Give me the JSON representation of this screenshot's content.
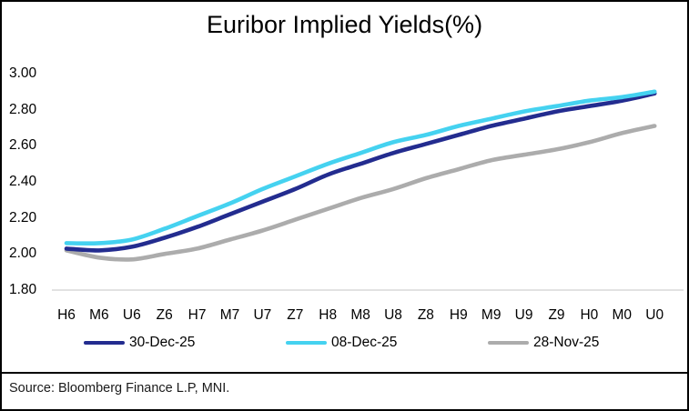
{
  "chart_data": {
    "type": "line",
    "title": "Euribor Implied Yields(%)",
    "categories": [
      "H6",
      "M6",
      "U6",
      "Z6",
      "H7",
      "M7",
      "U7",
      "Z7",
      "H8",
      "M8",
      "U8",
      "Z8",
      "H9",
      "M9",
      "U9",
      "Z9",
      "H0",
      "M0",
      "U0"
    ],
    "series": [
      {
        "name": "30-Dec-25",
        "color": "#232C8F",
        "values": [
          2.03,
          2.02,
          2.04,
          2.09,
          2.15,
          2.22,
          2.29,
          2.36,
          2.44,
          2.5,
          2.56,
          2.61,
          2.66,
          2.71,
          2.75,
          2.79,
          2.82,
          2.85,
          2.89
        ]
      },
      {
        "name": "08-Dec-25",
        "color": "#45D2F0",
        "values": [
          2.06,
          2.06,
          2.08,
          2.14,
          2.21,
          2.28,
          2.36,
          2.43,
          2.5,
          2.56,
          2.62,
          2.66,
          2.71,
          2.75,
          2.79,
          2.82,
          2.85,
          2.87,
          2.9
        ]
      },
      {
        "name": "28-Nov-25",
        "color": "#ACACAC",
        "values": [
          2.02,
          1.98,
          1.97,
          2.0,
          2.03,
          2.08,
          2.13,
          2.19,
          2.25,
          2.31,
          2.36,
          2.42,
          2.47,
          2.52,
          2.55,
          2.58,
          2.62,
          2.67,
          2.71
        ]
      }
    ],
    "ylim": [
      1.8,
      3.0
    ],
    "ytick_labels": [
      "3.00",
      "2.80",
      "2.60",
      "2.40",
      "2.20",
      "2.00",
      "1.80"
    ],
    "yticks": [
      3.0,
      2.8,
      2.6,
      2.4,
      2.2,
      2.0,
      1.8
    ],
    "grid": "baseline-only",
    "baseline_color": "#D9D9D9",
    "legend_position": "bottom"
  },
  "source": "Source: Bloomberg Finance L.P, MNI."
}
